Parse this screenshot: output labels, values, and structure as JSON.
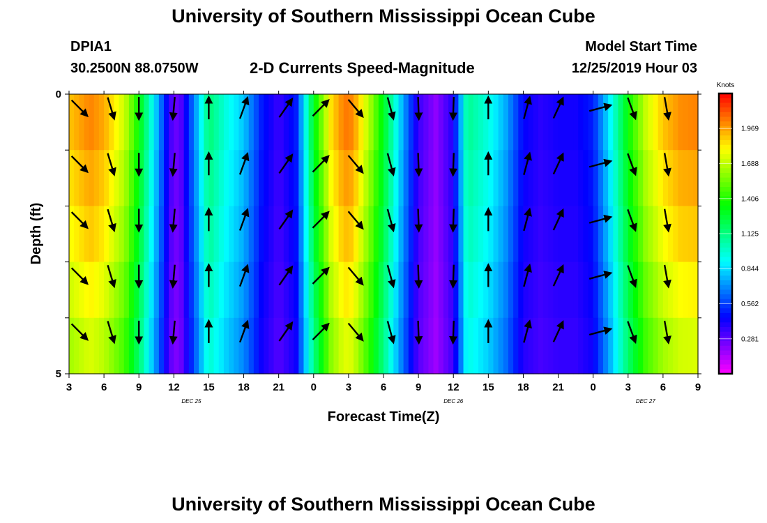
{
  "page": {
    "title_top": "University of Southern Mississippi Ocean Cube",
    "title_bottom": "University of Southern Mississippi Ocean Cube",
    "station_id": "DPIA1",
    "station_coords": "30.2500N 88.0750W",
    "plot_subtitle": "2-D Currents Speed-Magnitude",
    "model_start_label": "Model Start Time",
    "model_start_value": "12/25/2019 Hour 03"
  },
  "chart_data": {
    "type": "heatmap",
    "title": "2-D Currents Speed-Magnitude",
    "xlabel": "Forecast Time(Z)",
    "ylabel": "Depth (ft)",
    "x_tick_labels": [
      "3",
      "6",
      "9",
      "12",
      "15",
      "18",
      "21",
      "0",
      "3",
      "6",
      "9",
      "12",
      "15",
      "18",
      "21",
      "0",
      "3",
      "6",
      "9"
    ],
    "day_labels": [
      {
        "text": "DEC 25",
        "at_tick": 3.5
      },
      {
        "text": "DEC 26",
        "at_tick": 11.0
      },
      {
        "text": "DEC 27",
        "at_tick": 16.5
      }
    ],
    "y_tick_labels": [
      "0",
      "5"
    ],
    "ylim": [
      0,
      5
    ],
    "colorbar": {
      "title": "Knots",
      "min": 0.0,
      "max": 2.25,
      "tick_values": [
        1.969,
        1.688,
        1.406,
        1.125,
        0.844,
        0.562,
        0.281
      ],
      "tick_labels": [
        "1.969",
        "1.688",
        "1.406",
        "1.125",
        "0.844",
        "0.562",
        "0.281"
      ]
    },
    "speed_profile": {
      "x": [
        0,
        0.6,
        1,
        1.6,
        2,
        2.5,
        2.8,
        3,
        3.2,
        3.6,
        4,
        4.5,
        5,
        5.5,
        6,
        6.5,
        7,
        7.5,
        7.8,
        8,
        8.2,
        8.6,
        9,
        9.5,
        10,
        10.5,
        11,
        11.4,
        12,
        12.5,
        13,
        13.5,
        14,
        14.5,
        15,
        15.5,
        16,
        16.5,
        17,
        17.5,
        18
      ],
      "speed": [
        1.9,
        2.02,
        1.95,
        1.7,
        1.35,
        0.8,
        0.45,
        0.25,
        0.3,
        0.7,
        1.15,
        0.95,
        0.8,
        0.5,
        0.35,
        0.5,
        1.3,
        1.85,
        2.0,
        2.05,
        1.95,
        1.65,
        1.3,
        0.8,
        0.35,
        0.2,
        0.4,
        1.1,
        0.95,
        0.75,
        0.45,
        0.38,
        0.42,
        0.42,
        0.5,
        0.9,
        1.35,
        1.7,
        1.9,
        2.0,
        2.02
      ],
      "depth_factor": [
        1.0,
        0.97,
        0.94,
        0.9,
        0.86
      ]
    },
    "arrow_cols": [
      {
        "x": 0.3,
        "dir": 135
      },
      {
        "x": 1.2,
        "dir": 163
      },
      {
        "x": 2.0,
        "dir": 180
      },
      {
        "x": 3.0,
        "dir": 185
      },
      {
        "x": 4.0,
        "dir": 0
      },
      {
        "x": 5.0,
        "dir": 20
      },
      {
        "x": 6.2,
        "dir": 35
      },
      {
        "x": 7.2,
        "dir": 45
      },
      {
        "x": 8.2,
        "dir": 140
      },
      {
        "x": 9.2,
        "dir": 165
      },
      {
        "x": 10.0,
        "dir": 178
      },
      {
        "x": 11.0,
        "dir": 182
      },
      {
        "x": 12.0,
        "dir": 0
      },
      {
        "x": 13.1,
        "dir": 15
      },
      {
        "x": 14.0,
        "dir": 25
      },
      {
        "x": 15.2,
        "dir": 75
      },
      {
        "x": 16.1,
        "dir": 160
      },
      {
        "x": 17.1,
        "dir": 170
      }
    ],
    "arrow_rows": [
      0.25,
      1.25,
      2.25,
      3.25,
      4.25
    ]
  }
}
